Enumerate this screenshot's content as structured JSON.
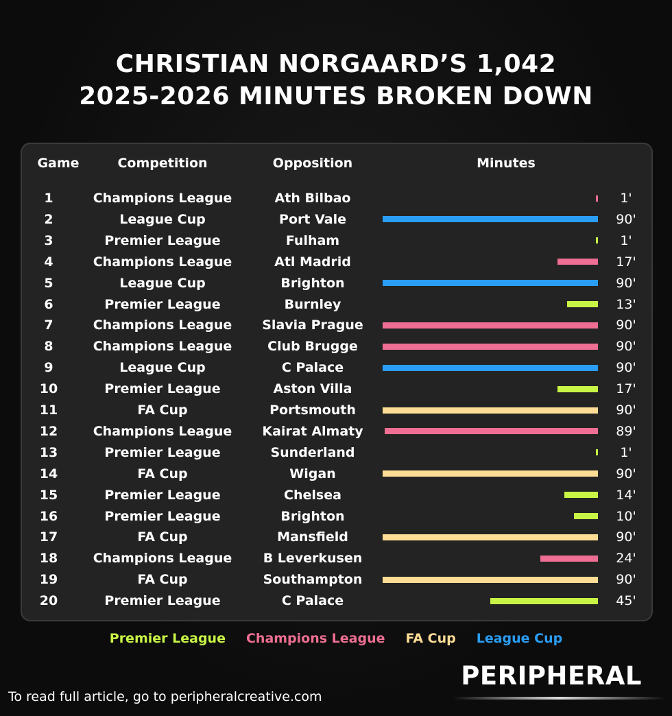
{
  "title_line1": "CHRISTIAN NORGAARD’S 1,042",
  "title_line2": "2025-2026 MINUTES BROKEN DOWN",
  "headers": {
    "game": "Game",
    "competition": "Competition",
    "opposition": "Opposition",
    "minutes": "Minutes"
  },
  "colors": {
    "Premier League": "#c8f545",
    "Champions League": "#ee6f93",
    "FA Cup": "#fddc95",
    "League Cup": "#2a9df4"
  },
  "chart_data": {
    "type": "bar",
    "orientation": "horizontal",
    "title": "CHRISTIAN NORGAARD’S 1,042 2025-2026 MINUTES BROKEN DOWN",
    "xlim": [
      0,
      90
    ],
    "rows": [
      {
        "game": "1",
        "competition": "Champions League",
        "opposition": "Ath Bilbao",
        "minutes": 1,
        "label": "1'"
      },
      {
        "game": "2",
        "competition": "League Cup",
        "opposition": "Port Vale",
        "minutes": 90,
        "label": "90'"
      },
      {
        "game": "3",
        "competition": "Premier League",
        "opposition": "Fulham",
        "minutes": 1,
        "label": "1'"
      },
      {
        "game": "4",
        "competition": "Champions League",
        "opposition": "Atl Madrid",
        "minutes": 17,
        "label": "17'"
      },
      {
        "game": "5",
        "competition": "League Cup",
        "opposition": "Brighton",
        "minutes": 90,
        "label": "90'"
      },
      {
        "game": "6",
        "competition": "Premier League",
        "opposition": "Burnley",
        "minutes": 13,
        "label": "13'"
      },
      {
        "game": "7",
        "competition": "Champions League",
        "opposition": "Slavia Prague",
        "minutes": 90,
        "label": "90'"
      },
      {
        "game": "8",
        "competition": "Champions League",
        "opposition": "Club Brugge",
        "minutes": 90,
        "label": "90'"
      },
      {
        "game": "9",
        "competition": "League Cup",
        "opposition": "C Palace",
        "minutes": 90,
        "label": "90'"
      },
      {
        "game": "10",
        "competition": "Premier League",
        "opposition": "Aston Villa",
        "minutes": 17,
        "label": "17'"
      },
      {
        "game": "11",
        "competition": "FA Cup",
        "opposition": "Portsmouth",
        "minutes": 90,
        "label": "90'"
      },
      {
        "game": "12",
        "competition": "Champions League",
        "opposition": "Kairat Almaty",
        "minutes": 89,
        "label": "89'"
      },
      {
        "game": "13",
        "competition": "Premier League",
        "opposition": "Sunderland",
        "minutes": 1,
        "label": "1'"
      },
      {
        "game": "14",
        "competition": "FA Cup",
        "opposition": "Wigan",
        "minutes": 90,
        "label": "90'"
      },
      {
        "game": "15",
        "competition": "Premier League",
        "opposition": "Chelsea",
        "minutes": 14,
        "label": "14'"
      },
      {
        "game": "16",
        "competition": "Premier League",
        "opposition": "Brighton",
        "minutes": 10,
        "label": "10'"
      },
      {
        "game": "17",
        "competition": "FA Cup",
        "opposition": "Mansfield",
        "minutes": 90,
        "label": "90'"
      },
      {
        "game": "18",
        "competition": "Champions League",
        "opposition": "B Leverkusen",
        "minutes": 24,
        "label": "24'"
      },
      {
        "game": "19",
        "competition": "FA Cup",
        "opposition": "Southampton",
        "minutes": 90,
        "label": "90'"
      },
      {
        "game": "20",
        "competition": "Premier League",
        "opposition": "C Palace",
        "minutes": 45,
        "label": "45'"
      }
    ],
    "legend": [
      "Premier League",
      "Champions League",
      "FA Cup",
      "League Cup"
    ]
  },
  "brand": "PERIPHERAL",
  "footer": "To read full article, go to peripheralcreative.com"
}
